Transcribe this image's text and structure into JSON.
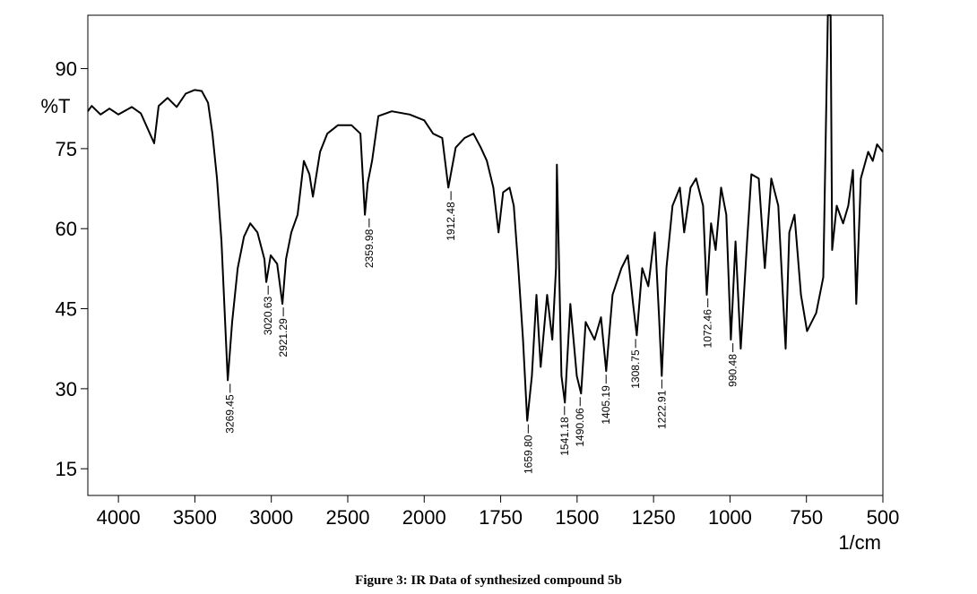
{
  "chart_data": {
    "type": "line",
    "caption": "Figure 3: IR Data of synthesized compound 5b",
    "x_label": "1/cm",
    "y_label": "%T",
    "xlim": [
      4200,
      500
    ],
    "ylim": [
      10,
      100
    ],
    "x_scale_break": {
      "at": 2000,
      "ratio": 2
    },
    "xticks": [
      4000,
      3500,
      3000,
      2500,
      2000,
      1750,
      1500,
      1250,
      1000,
      750,
      500
    ],
    "yticks": [
      15,
      30,
      45,
      60,
      75,
      90
    ],
    "x": [
      4200,
      4175,
      4117,
      4059,
      4000,
      3912,
      3853,
      3766,
      3737,
      3678,
      3619,
      3560,
      3502,
      3455,
      3414,
      3385,
      3355,
      3326,
      3285,
      3256,
      3220,
      3179,
      3138,
      3091,
      3045,
      3033,
      3004,
      2962,
      2927,
      2904,
      2869,
      2828,
      2787,
      2751,
      2728,
      2681,
      2634,
      2564,
      2476,
      2417,
      2388,
      2370,
      2341,
      2300,
      2212,
      2095,
      2000,
      1971,
      1941,
      1921,
      1897,
      1868,
      1839,
      1815,
      1795,
      1774,
      1757,
      1742,
      1721,
      1707,
      1692,
      1677,
      1663,
      1648,
      1633,
      1619,
      1598,
      1581,
      1569,
      1566,
      1551,
      1540,
      1522,
      1501,
      1487,
      1472,
      1443,
      1422,
      1405,
      1384,
      1355,
      1334,
      1317,
      1305,
      1287,
      1267,
      1246,
      1232,
      1223,
      1208,
      1188,
      1164,
      1150,
      1129,
      1111,
      1088,
      1076,
      1062,
      1047,
      1029,
      1012,
      997,
      982,
      965,
      944,
      930,
      906,
      886,
      865,
      842,
      818,
      806,
      789,
      768,
      748,
      718,
      695,
      680,
      671,
      666,
      651,
      630,
      613,
      598,
      587,
      572,
      548,
      533,
      519,
      500
    ],
    "series": [
      {
        "name": "%T",
        "color": "#000000",
        "values": [
          82,
          83,
          81.4,
          82.5,
          81.4,
          82.8,
          81.6,
          76,
          83,
          84.5,
          82.8,
          85.3,
          86,
          85.8,
          83.6,
          77.8,
          69.4,
          57.6,
          31.6,
          42.5,
          52.6,
          58.5,
          61,
          59.3,
          54.3,
          50,
          55,
          53.4,
          45.9,
          54.3,
          59.3,
          62.6,
          72.7,
          70.2,
          66,
          74.4,
          77.8,
          79.4,
          79.4,
          77.8,
          62.6,
          68.5,
          72.7,
          81.1,
          82,
          81.4,
          80.3,
          77.8,
          77,
          67.7,
          75.2,
          77,
          77.8,
          75.2,
          72.7,
          67.7,
          59.3,
          66.8,
          67.7,
          64.3,
          52.6,
          39.2,
          24,
          32.4,
          47.6,
          34.1,
          47.6,
          39.2,
          52.6,
          72,
          32.4,
          27.4,
          45.9,
          32.4,
          29.1,
          42.5,
          39.2,
          43.4,
          33.3,
          47.6,
          52.6,
          55,
          45.9,
          40,
          52.6,
          49.2,
          59.3,
          43.4,
          32.4,
          52.6,
          64.3,
          67.7,
          59.3,
          67.7,
          69.4,
          64.3,
          47.6,
          61,
          56,
          67.7,
          62.6,
          39.2,
          57.6,
          37.5,
          57.6,
          70.2,
          69.4,
          52.6,
          69.4,
          64.3,
          37.5,
          59.3,
          62.6,
          47.6,
          40.8,
          44.2,
          50.9,
          100,
          100,
          56,
          64.3,
          61,
          64.3,
          71,
          45.9,
          69.4,
          74.4,
          72.7,
          75.8,
          74.4
        ]
      }
    ],
    "annotations": [
      {
        "x": 3269.45,
        "y": 31.6,
        "label": "3269.45"
      },
      {
        "x": 3020.63,
        "y": 50,
        "label": "3020.63"
      },
      {
        "x": 2921.29,
        "y": 45.9,
        "label": "2921.29"
      },
      {
        "x": 2359.98,
        "y": 62.6,
        "label": "2359.98"
      },
      {
        "x": 1912.48,
        "y": 67.7,
        "label": "1912.48"
      },
      {
        "x": 1659.8,
        "y": 24,
        "label": "1659.80"
      },
      {
        "x": 1541.18,
        "y": 27.4,
        "label": "1541.18"
      },
      {
        "x": 1490.06,
        "y": 29.1,
        "label": "1490.06"
      },
      {
        "x": 1405.19,
        "y": 33.3,
        "label": "1405.19"
      },
      {
        "x": 1308.75,
        "y": 40,
        "label": "1308.75"
      },
      {
        "x": 1222.91,
        "y": 32.4,
        "label": "1222.91"
      },
      {
        "x": 1072.46,
        "y": 47.6,
        "label": "1072.46"
      },
      {
        "x": 990.48,
        "y": 39.2,
        "label": "990.48"
      }
    ]
  }
}
